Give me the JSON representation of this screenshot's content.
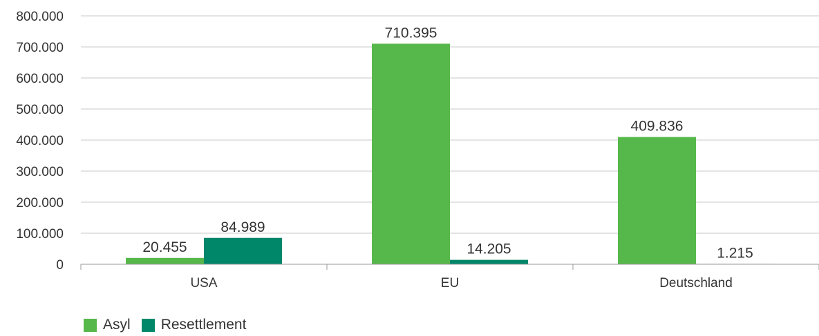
{
  "chart_data": {
    "type": "bar",
    "categories": [
      "USA",
      "EU",
      "Deutschland"
    ],
    "series": [
      {
        "name": "Asyl",
        "values": [
          20455,
          710395,
          409836
        ],
        "labels": [
          "20.455",
          "710.395",
          "409.836"
        ],
        "color": "#56b84a"
      },
      {
        "name": "Resettlement",
        "values": [
          84989,
          14205,
          1215
        ],
        "labels": [
          "84.989",
          "14.205",
          "1.215"
        ],
        "color": "#00876a"
      }
    ],
    "ylim": [
      0,
      800000
    ],
    "yticks": [
      0,
      100000,
      200000,
      300000,
      400000,
      500000,
      600000,
      700000,
      800000
    ],
    "ytick_labels": [
      "0",
      "100.000",
      "200.000",
      "300.000",
      "400.000",
      "500.000",
      "600.000",
      "700.000",
      "800.000"
    ],
    "grid": true,
    "legend_position": "bottom-left",
    "title": "",
    "xlabel": "",
    "ylabel": ""
  }
}
